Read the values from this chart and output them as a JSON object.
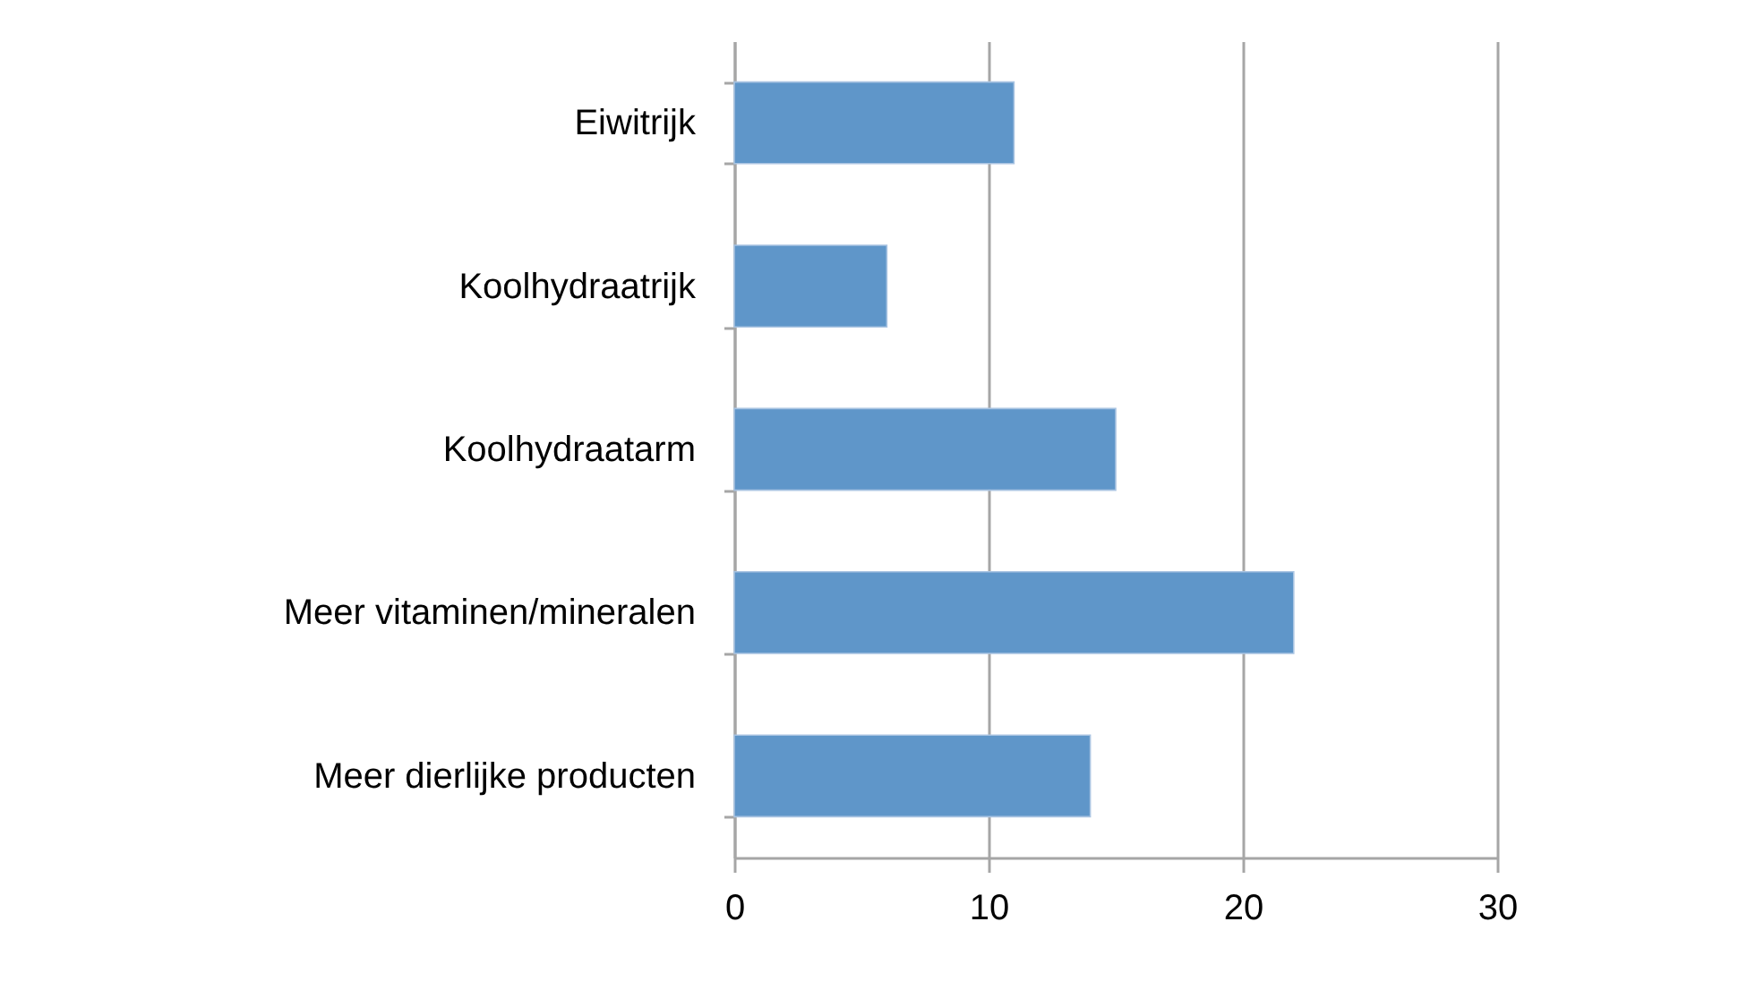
{
  "chart_data": {
    "type": "bar",
    "orientation": "horizontal",
    "categories": [
      "Eiwitrijk",
      "Koolhydraatrijk",
      "Koolhydraatarm",
      "Meer vitaminen/mineralen",
      "Meer dierlijke producten"
    ],
    "values": [
      11,
      6,
      15,
      22,
      14
    ],
    "color": "#5f96c9",
    "xlim": [
      0,
      30
    ],
    "xticks": [
      0,
      10,
      20,
      30
    ],
    "grid": "x"
  }
}
